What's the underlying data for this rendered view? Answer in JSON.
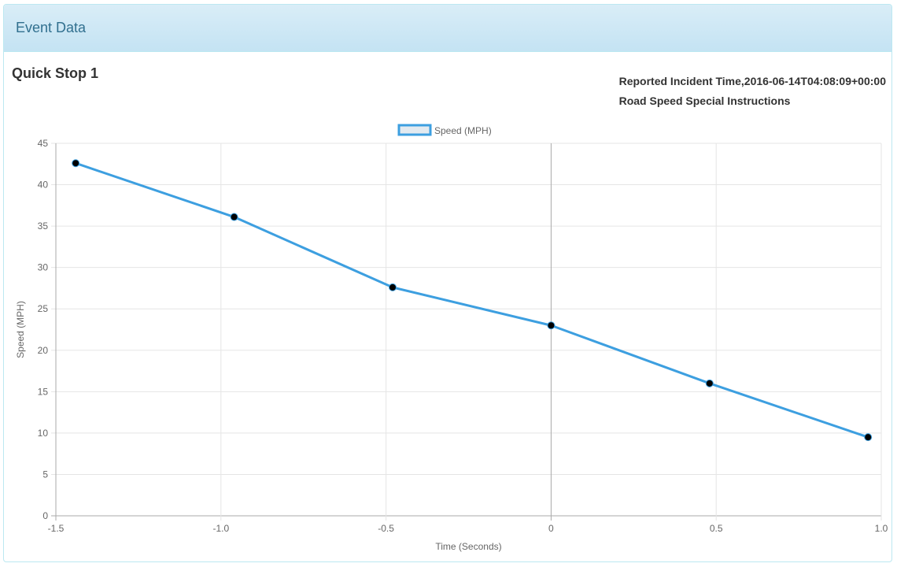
{
  "panel": {
    "title": "Event Data"
  },
  "info": {
    "reported_incident_time": "Reported Incident Time,2016-06-14T04:08:09+00:00",
    "special_instructions": "Road Speed Special Instructions"
  },
  "chart_data": {
    "type": "line",
    "title": "Quick Stop 1",
    "xlabel": "Time (Seconds)",
    "ylabel": "Speed (MPH)",
    "xlim": [
      -1.5,
      1.0
    ],
    "ylim": [
      0,
      45
    ],
    "x_ticks": [
      "-1.5",
      "-1.0",
      "-0.5",
      "0",
      "0.5",
      "1.0"
    ],
    "y_ticks": [
      "0",
      "5",
      "10",
      "15",
      "20",
      "25",
      "30",
      "35",
      "40",
      "45"
    ],
    "grid": true,
    "legend_position": "top-center",
    "series": [
      {
        "name": "Speed (MPH)",
        "color": "#3d9fe0",
        "point_color": "#000000",
        "x": [
          -1.44,
          -0.96,
          -0.48,
          0.0,
          0.48,
          0.96
        ],
        "y": [
          42.6,
          36.1,
          27.6,
          23.0,
          16.0,
          9.5
        ]
      }
    ]
  }
}
